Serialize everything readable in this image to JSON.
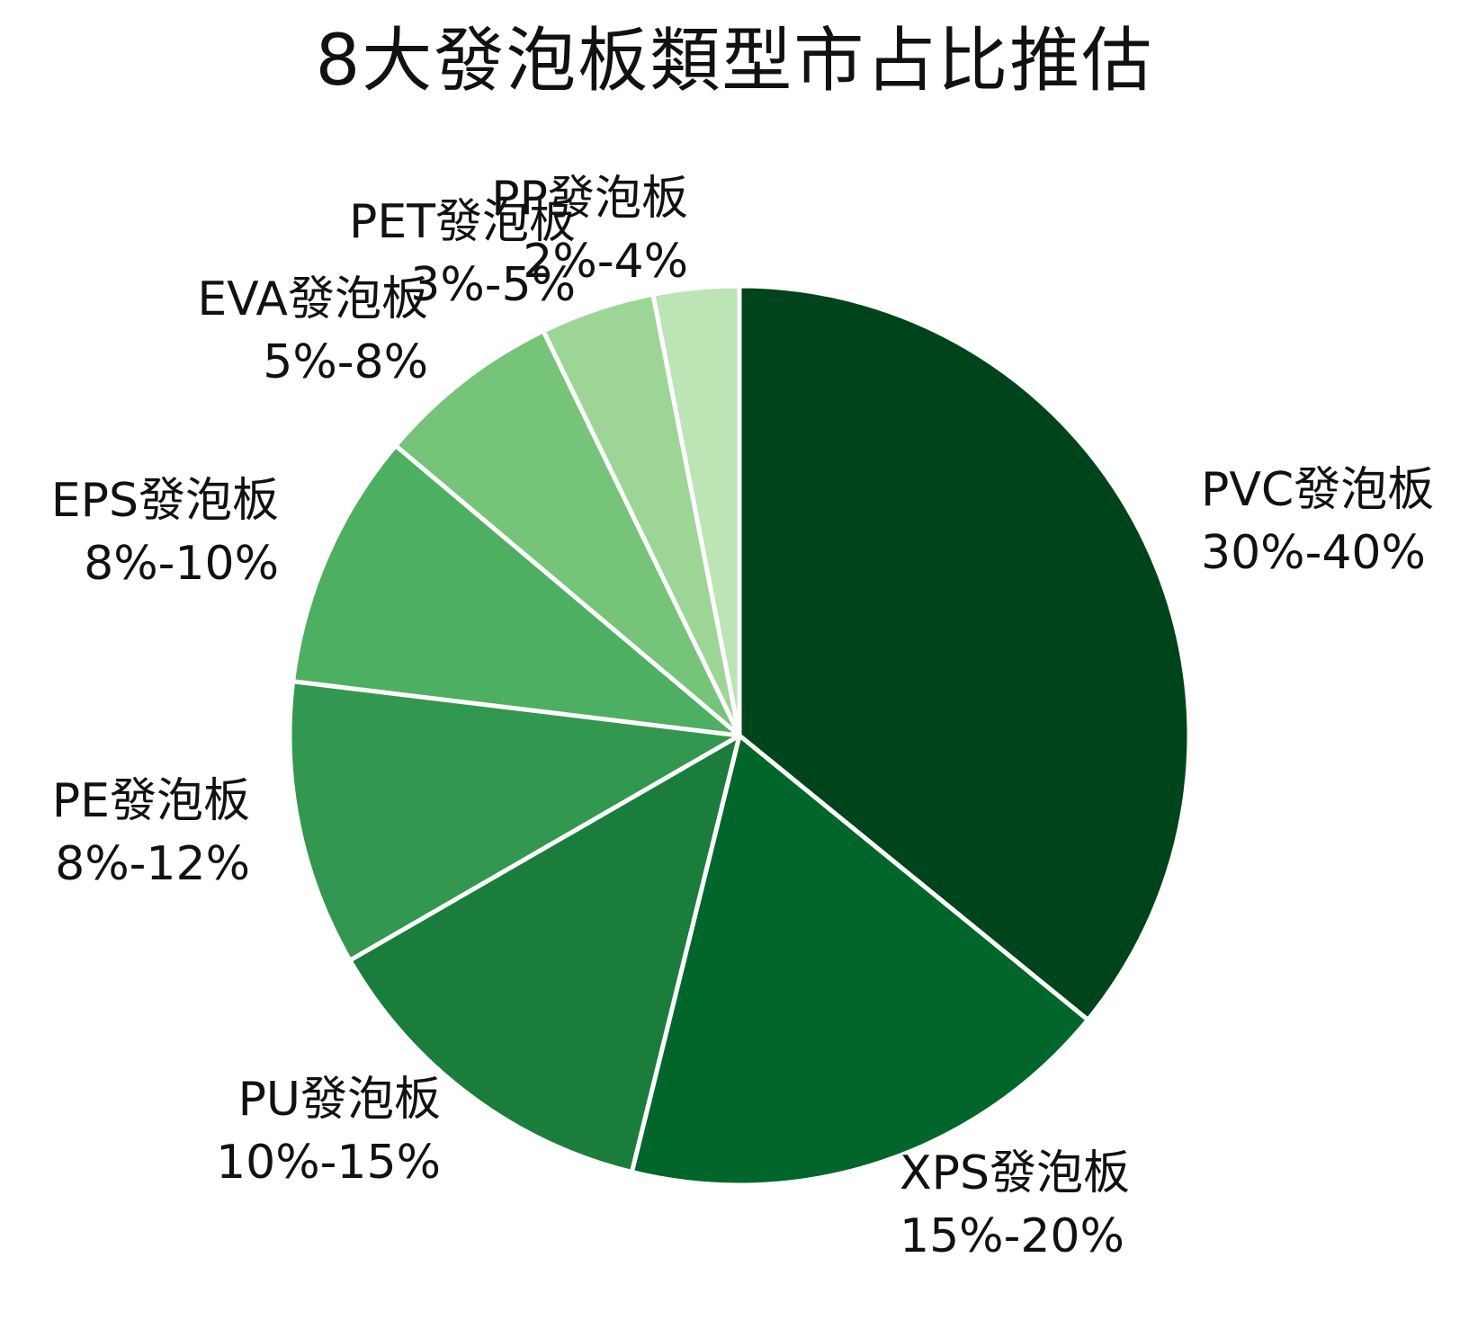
{
  "chart_data": {
    "type": "pie",
    "title": "8大發泡板類型市占比推估",
    "slices": [
      {
        "name": "PVC發泡板",
        "range_label": "30%-40%",
        "value": 35,
        "color": "#00441b"
      },
      {
        "name": "XPS發泡板",
        "range_label": "15%-20%",
        "value": 17.5,
        "color": "#00662a"
      },
      {
        "name": "PU發泡板",
        "range_label": "10%-15%",
        "value": 12.5,
        "color": "#1a7d3b"
      },
      {
        "name": "PE發泡板",
        "range_label": "8%-12%",
        "value": 10,
        "color": "#33984f"
      },
      {
        "name": "EPS發泡板",
        "range_label": "8%-10%",
        "value": 9,
        "color": "#4daf62"
      },
      {
        "name": "EVA發泡板",
        "range_label": "5%-8%",
        "value": 6.5,
        "color": "#76c47a"
      },
      {
        "name": "PET發泡板",
        "range_label": "3%-5%",
        "value": 4,
        "color": "#9dd597"
      },
      {
        "name": "PP發泡板",
        "range_label": "2%-4%",
        "value": 3,
        "color": "#bce4b5"
      }
    ],
    "start": "12 o'clock",
    "direction": "clockwise",
    "legend": "none"
  }
}
